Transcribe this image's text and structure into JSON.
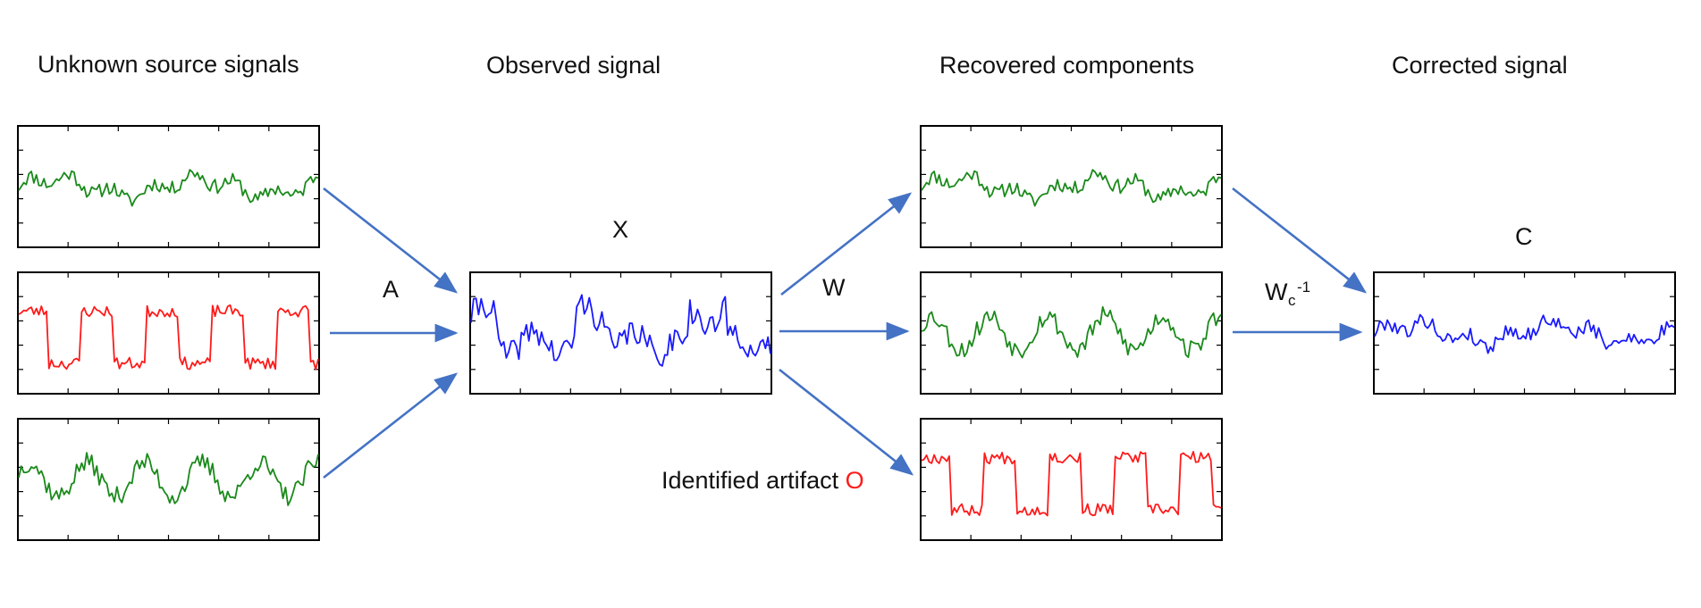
{
  "columns": {
    "sources": "Unknown source signals",
    "observed": "Observed signal",
    "recovered": "Recovered components",
    "corrected": "Corrected signal"
  },
  "symbols": {
    "mixing": "A",
    "observed": "X",
    "unmixing": "W",
    "inverse_base": "W",
    "inverse_sub": "c",
    "inverse_sup": "-1",
    "corrected": "C"
  },
  "artifact": {
    "label": "Identified artifact ",
    "symbol": "O"
  },
  "colors": {
    "green": "#1a8a1a",
    "red": "#ff1a1a",
    "blue": "#1a1aff",
    "arrow": "#4472C4"
  },
  "signals": [
    {
      "id": "source-1",
      "color": "green",
      "shape": "noise",
      "seed": 11
    },
    {
      "id": "source-2",
      "color": "red",
      "shape": "square",
      "seed": 23
    },
    {
      "id": "source-3",
      "color": "green",
      "shape": "wave",
      "seed": 37
    },
    {
      "id": "observed-x",
      "color": "blue",
      "shape": "mixed",
      "seed": 41
    },
    {
      "id": "recovered-1",
      "color": "green",
      "shape": "noise",
      "seed": 11
    },
    {
      "id": "recovered-2",
      "color": "green",
      "shape": "wave",
      "seed": 53
    },
    {
      "id": "recovered-artifact",
      "color": "red",
      "shape": "square",
      "seed": 67
    },
    {
      "id": "corrected-c",
      "color": "blue",
      "shape": "noise",
      "seed": 79
    }
  ]
}
